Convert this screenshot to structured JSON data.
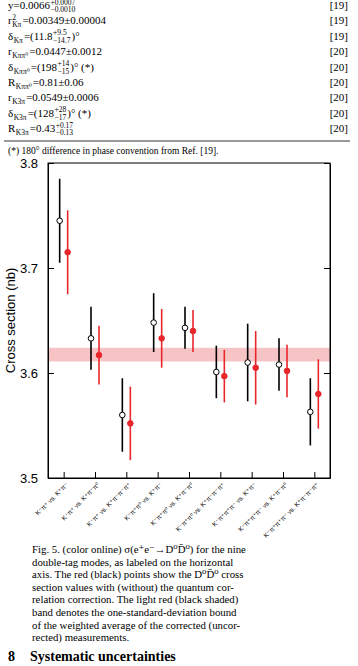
{
  "table": {
    "rows": [
      {
        "cells": [
          {
            "text": "y=0.0066",
            "sup": "+0.0007",
            "sub": "−0.0010"
          }
        ],
        "ref": "[19]"
      },
      {
        "cells": [
          {
            "text": "r",
            "sup": "2",
            "sub": "Kπ"
          },
          {
            "text": "=0.00349±0.00004"
          }
        ],
        "ref": "[19]"
      },
      {
        "cells": [
          {
            "text": "δ",
            "sub": "Kπ"
          },
          {
            "text": "=(11.8",
            "sup": "+9.5",
            "sub": "−14.7"
          },
          {
            "text": ")°"
          }
        ],
        "ref": "[19]"
      },
      {
        "cells": [
          {
            "text": "r",
            "sub": "Kππ⁰"
          },
          {
            "text": "=0.0447±0.0012"
          }
        ],
        "ref": "[20]"
      },
      {
        "cells": [
          {
            "text": "δ",
            "sub": "Kππ⁰"
          },
          {
            "text": "=(198",
            "sup": "+14",
            "sub": "−15"
          },
          {
            "text": ")° (*)"
          }
        ],
        "ref": "[20]"
      },
      {
        "cells": [
          {
            "text": "R",
            "sub": "Kππ⁰"
          },
          {
            "text": "=0.81±0.06"
          }
        ],
        "ref": "[20]"
      },
      {
        "cells": [
          {
            "text": "r",
            "sub": "K3π"
          },
          {
            "text": "=0.0549±0.0006"
          }
        ],
        "ref": "[20]"
      },
      {
        "cells": [
          {
            "text": "δ",
            "sub": "K3π"
          },
          {
            "text": "=(128",
            "sup": "+28",
            "sub": "−17"
          },
          {
            "text": ")° (*)"
          }
        ],
        "ref": "[20]"
      },
      {
        "cells": [
          {
            "text": "R",
            "sub": "K3π"
          },
          {
            "text": "=0.43",
            "sup": "+0.17",
            "sub": "−0.13"
          }
        ],
        "ref": "[20]"
      }
    ]
  },
  "footnote": "(*) 180° difference in phase convention from Ref. [19].",
  "chart_data": {
    "type": "scatter",
    "y_label": "Cross section (nb)",
    "categories": [
      "K⁻π⁺ vs. K⁺π⁻",
      "K⁻π⁺ vs. K⁺π⁻π⁰",
      "K⁻π⁺ vs. K⁺π⁻π⁻π⁺",
      "K⁻π⁺π⁰ vs. K⁺π⁻",
      "K⁻π⁺π⁰ vs. K⁺π⁻π⁰",
      "K⁻π⁺π⁰ vs. K⁺π⁻π⁻π⁺",
      "K⁻π⁺π⁺π⁻ vs. K⁺π⁻",
      "K⁻π⁺π⁺π⁻ vs. K⁺π⁻π⁰",
      "K⁻π⁺π⁺π⁻ vs. K⁺π⁻π⁻π⁺"
    ],
    "series": [
      {
        "color": "#000000",
        "marker": "open-circle",
        "values": [
          3.745,
          3.633,
          3.56,
          3.648,
          3.643,
          3.601,
          3.61,
          3.608,
          3.563
        ],
        "errors": [
          0.04,
          0.03,
          0.035,
          0.028,
          0.02,
          0.025,
          0.037,
          0.025,
          0.032
        ]
      },
      {
        "color": "#e8262b",
        "marker": "circle",
        "values": [
          3.715,
          3.617,
          3.552,
          3.633,
          3.64,
          3.597,
          3.605,
          3.602,
          3.58
        ],
        "errors": [
          0.04,
          0.028,
          0.035,
          0.028,
          0.02,
          0.025,
          0.035,
          0.025,
          0.033
        ]
      }
    ],
    "band": {
      "value": 3.6175,
      "error": 0.0065,
      "color": "#f6c4c4"
    },
    "ylim": [
      3.5,
      3.8
    ],
    "yticks": [
      3.5,
      3.6,
      3.7,
      3.8
    ],
    "grid": false
  },
  "caption": {
    "lines": [
      "Fig. 5.   (color online) σ(e⁺e⁻→D⁰D̄⁰) for the nine",
      "double-tag modes, as labeled on the horizontal",
      "axis. The red (black) points show the D⁰D̄⁰ cross",
      "section values with (without) the quantum cor-",
      "relation correction. The light red (black shaded)",
      "band denotes the one-standard-deviation bound",
      "of the weighted average of the corrected (uncor-",
      "rected) measurements."
    ]
  },
  "section": {
    "number": "8",
    "title": "Systematic uncertainties"
  }
}
